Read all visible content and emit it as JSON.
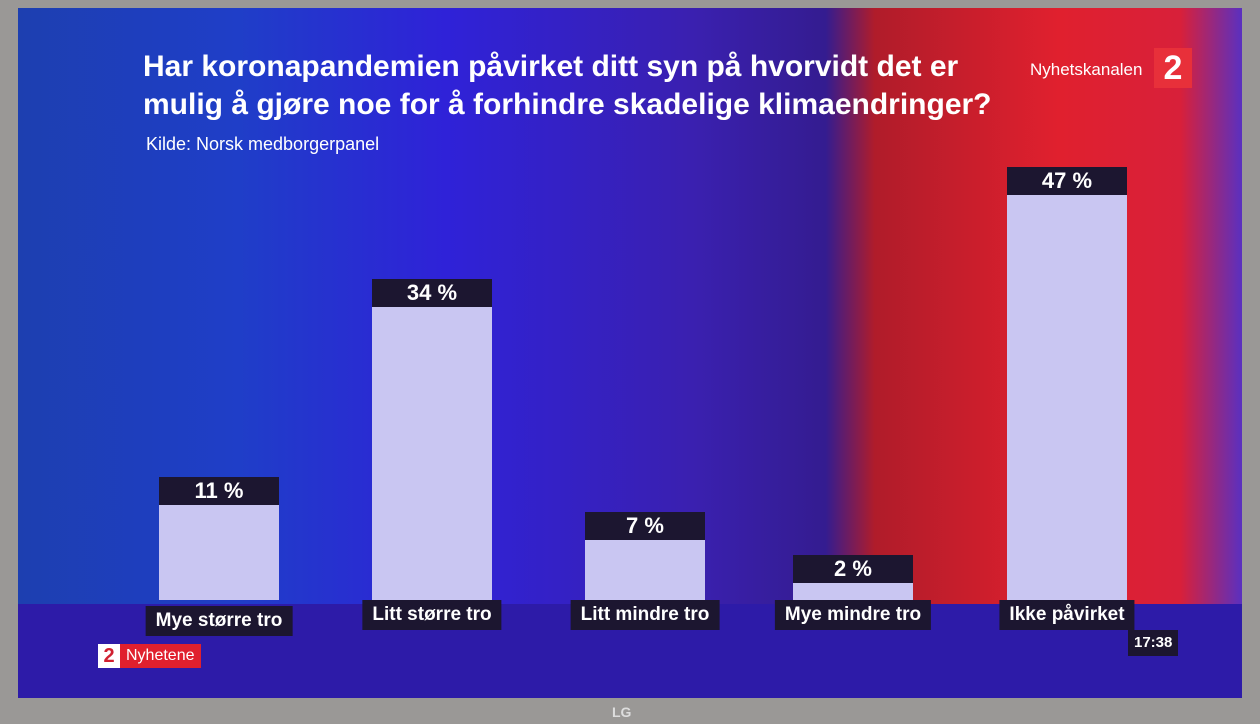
{
  "chart_data": {
    "type": "bar",
    "title": "Har koronapandemien påvirket ditt syn på hvorvidt det er mulig å gjøre noe for å forhindre skadelige klimaendringer?",
    "subtitle": "Kilde: Norsk medborgerpanel",
    "categories": [
      "Mye større tro",
      "Litt større tro",
      "Litt mindre tro",
      "Mye mindre tro",
      "Ikke påvirket"
    ],
    "values": [
      11,
      34,
      7,
      2,
      47
    ],
    "value_labels": [
      "11 %",
      "34 %",
      "7 %",
      "2 %",
      "47 %"
    ],
    "color": "#c9c6f2"
  },
  "screen": {
    "channel": "Nyhetskanalen",
    "channel_logo": "2",
    "program_logo": "2",
    "program": "Nyhetene",
    "clock": "17:38",
    "brand": "LG"
  }
}
